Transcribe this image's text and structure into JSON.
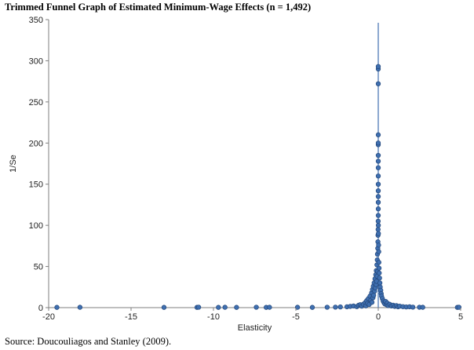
{
  "chart_data": {
    "type": "scatter",
    "title": "Trimmed Funnel Graph of Estimated Minimum-Wage Effects (n = 1,492)",
    "xlabel": "Elasticity",
    "ylabel": "1/Se",
    "xlim": [
      -20,
      5
    ],
    "ylim": [
      0,
      350
    ],
    "xticks": [
      -20,
      -15,
      -10,
      -5,
      0,
      5
    ],
    "yticks": [
      0,
      50,
      100,
      150,
      200,
      250,
      300,
      350
    ],
    "grid": false,
    "legend": "none",
    "marker_color": "#3f6fb0",
    "marker_edge_color": "#23477a",
    "reference_line_x": 0,
    "points": [
      [
        -19.5,
        0.3
      ],
      [
        -18.1,
        0.4
      ],
      [
        -13.0,
        0.3
      ],
      [
        -11.0,
        0.3
      ],
      [
        -10.9,
        0.5
      ],
      [
        -9.7,
        0.3
      ],
      [
        -9.3,
        0.4
      ],
      [
        -8.6,
        0.3
      ],
      [
        -7.4,
        0.5
      ],
      [
        -6.8,
        0.3
      ],
      [
        -6.6,
        0.4
      ],
      [
        -4.9,
        0.4
      ],
      [
        -4.0,
        0.3
      ],
      [
        -3.1,
        0.5
      ],
      [
        -2.6,
        0.6
      ],
      [
        -2.3,
        0.8
      ],
      [
        -1.9,
        1.0
      ],
      [
        -1.7,
        1.5
      ],
      [
        -1.5,
        2.0
      ],
      [
        -1.3,
        1.2
      ],
      [
        -1.2,
        2.8
      ],
      [
        -1.1,
        3.5
      ],
      [
        -1.0,
        1.8
      ],
      [
        -0.9,
        4.2
      ],
      [
        -0.8,
        6.0
      ],
      [
        -0.75,
        2.2
      ],
      [
        -0.7,
        8.5
      ],
      [
        -0.65,
        5.0
      ],
      [
        -0.6,
        11.0
      ],
      [
        -0.55,
        3.8
      ],
      [
        -0.5,
        14.0
      ],
      [
        -0.45,
        9.0
      ],
      [
        -0.4,
        18.0
      ],
      [
        -0.38,
        6.5
      ],
      [
        -0.35,
        22.0
      ],
      [
        -0.32,
        12.0
      ],
      [
        -0.3,
        26.0
      ],
      [
        -0.28,
        15.0
      ],
      [
        -0.25,
        30.0
      ],
      [
        -0.22,
        20.0
      ],
      [
        -0.2,
        35.0
      ],
      [
        -0.18,
        24.0
      ],
      [
        -0.15,
        40.0
      ],
      [
        -0.13,
        28.0
      ],
      [
        -0.12,
        45.0
      ],
      [
        -0.1,
        32.0
      ],
      [
        -0.08,
        52.0
      ],
      [
        -0.07,
        38.0
      ],
      [
        -0.06,
        58.0
      ],
      [
        -0.05,
        65.0
      ],
      [
        -0.04,
        44.0
      ],
      [
        -0.03,
        72.0
      ],
      [
        -0.02,
        80.0
      ],
      [
        -0.015,
        88.0
      ],
      [
        -0.01,
        95.0
      ],
      [
        -0.005,
        105.0
      ],
      [
        0.0,
        112.0
      ],
      [
        0.0,
        120.0
      ],
      [
        0.0,
        128.0
      ],
      [
        0.0,
        135.0
      ],
      [
        0.0,
        142.0
      ],
      [
        0.0,
        150.0
      ],
      [
        0.0,
        160.0
      ],
      [
        0.0,
        170.0
      ],
      [
        0.0,
        178.0
      ],
      [
        0.0,
        185.0
      ],
      [
        0.0,
        198.0
      ],
      [
        0.0,
        200.0
      ],
      [
        0.0,
        210.0
      ],
      [
        0.0,
        272.0
      ],
      [
        0.0,
        290.0
      ],
      [
        0.0,
        293.0
      ],
      [
        0.005,
        100.0
      ],
      [
        0.01,
        90.0
      ],
      [
        0.02,
        76.0
      ],
      [
        0.03,
        68.0
      ],
      [
        0.04,
        55.0
      ],
      [
        0.05,
        48.0
      ],
      [
        0.06,
        42.0
      ],
      [
        0.08,
        36.0
      ],
      [
        0.1,
        30.0
      ],
      [
        0.12,
        25.0
      ],
      [
        0.15,
        21.0
      ],
      [
        0.18,
        17.0
      ],
      [
        0.2,
        14.0
      ],
      [
        0.25,
        11.0
      ],
      [
        0.3,
        8.0
      ],
      [
        0.35,
        6.0
      ],
      [
        0.4,
        4.5
      ],
      [
        0.45,
        7.5
      ],
      [
        0.5,
        3.5
      ],
      [
        0.55,
        5.5
      ],
      [
        0.6,
        2.5
      ],
      [
        0.7,
        4.0
      ],
      [
        0.8,
        2.0
      ],
      [
        0.9,
        3.0
      ],
      [
        1.0,
        1.5
      ],
      [
        1.1,
        2.5
      ],
      [
        1.2,
        1.0
      ],
      [
        1.3,
        1.8
      ],
      [
        1.5,
        1.2
      ],
      [
        1.7,
        0.8
      ],
      [
        1.9,
        1.0
      ],
      [
        2.1,
        0.6
      ],
      [
        2.5,
        0.5
      ],
      [
        2.7,
        0.4
      ],
      [
        4.8,
        0.3
      ],
      [
        4.9,
        0.4
      ]
    ]
  },
  "source": "Source: Doucouliagos and Stanley (2009)."
}
